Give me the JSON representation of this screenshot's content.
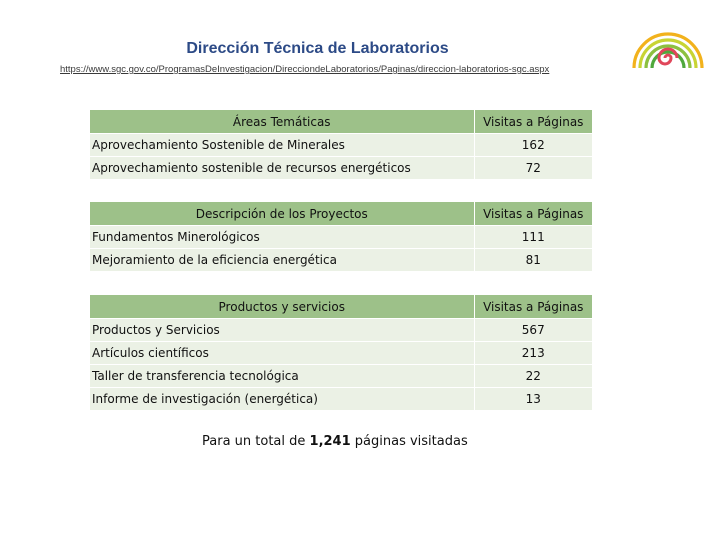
{
  "header": {
    "title": "Dirección Técnica de Laboratorios",
    "url": "https://www.sgc.gov.co/ProgramasDeInvestigacion/DirecciondeLaboratorios/Paginas/direccion-laboratorios-sgc.aspx"
  },
  "tables": [
    {
      "header": {
        "label": "Áreas Temáticas",
        "value": "Visitas a Páginas"
      },
      "rows": [
        {
          "label": "Aprovechamiento Sostenible de Minerales",
          "value": "162"
        },
        {
          "label": "Aprovechamiento sostenible de recursos energéticos",
          "value": "72"
        }
      ]
    },
    {
      "header": {
        "label": "Descripción de los Proyectos",
        "value": "Visitas a Páginas"
      },
      "rows": [
        {
          "label": "Fundamentos Minerológicos",
          "value": "111"
        },
        {
          "label": "Mejoramiento de la eficiencia energética",
          "value": "81"
        }
      ]
    },
    {
      "header": {
        "label": "Productos y servicios",
        "value": "Visitas a Páginas"
      },
      "rows": [
        {
          "label": "Productos y Servicios",
          "value": "567"
        },
        {
          "label": "Artículos científicos",
          "value": "213"
        },
        {
          "label": "Taller de transferencia tecnológica",
          "value": "22"
        },
        {
          "label": "Informe de investigación (energética)",
          "value": "13"
        }
      ]
    }
  ],
  "footer": {
    "prefix": "Para un total de ",
    "total": "1,241",
    "suffix": " páginas visitadas"
  },
  "colors": {
    "title": "#2c4a86",
    "header_fill": "#9dc189",
    "row_fill": "#ebf1e5",
    "logo_arcs": [
      "#f2b21c",
      "#b9cf3a",
      "#78b83c",
      "#3e9d3a",
      "#e0465a"
    ]
  }
}
